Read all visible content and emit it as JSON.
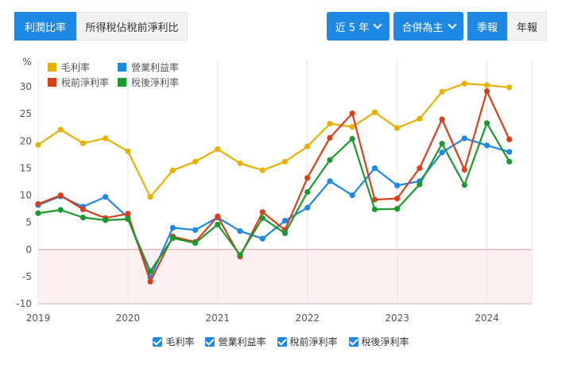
{
  "tabs": {
    "ratio": "利潤比率",
    "tax": "所得稅佔稅前淨利比"
  },
  "controls": {
    "period": "近 5 年",
    "scope": "合併為主",
    "quarterly": "季報",
    "annual": "年報"
  },
  "colors": {
    "gross": "#e8b100",
    "operating": "#1e88e5",
    "pretax": "#d8401c",
    "net": "#1a9a2e",
    "negative_zone": "#fdf0f3",
    "zero_line": "#e39aa9",
    "accent": "#1e88e5"
  },
  "chart_data": {
    "type": "line",
    "ylabel": "%",
    "ylim": [
      -10,
      35
    ],
    "yticks": [
      -10,
      -5,
      0,
      5,
      10,
      15,
      20,
      25,
      30
    ],
    "xlim": [
      2019,
      2024.5
    ],
    "xticks": [
      "2019",
      "2020",
      "2021",
      "2022",
      "2023",
      "2024"
    ],
    "legend_position": "top-left",
    "grid": "vertical",
    "x": [
      "2019Q1",
      "2019Q2",
      "2019Q3",
      "2019Q4",
      "2020Q1",
      "2020Q2",
      "2020Q3",
      "2020Q4",
      "2021Q1",
      "2021Q2",
      "2021Q3",
      "2021Q4",
      "2022Q1",
      "2022Q2",
      "2022Q3",
      "2022Q4",
      "2023Q1",
      "2023Q2",
      "2023Q3",
      "2023Q4",
      "2024Q1",
      "2024Q2"
    ],
    "series": [
      {
        "name": "毛利率",
        "key": "gross",
        "values": [
          19.3,
          22.1,
          19.6,
          20.5,
          18.1,
          9.7,
          14.6,
          16.2,
          18.5,
          15.9,
          14.6,
          16.2,
          19.0,
          23.2,
          22.6,
          25.3,
          22.4,
          24.1,
          29.1,
          30.6,
          30.3,
          29.9
        ]
      },
      {
        "name": "營業利益率",
        "key": "operating",
        "values": [
          8.2,
          9.8,
          7.9,
          9.7,
          5.9,
          -5.2,
          4.0,
          3.6,
          5.9,
          3.4,
          2.0,
          5.3,
          7.7,
          12.6,
          10.0,
          15.0,
          11.8,
          12.6,
          17.9,
          20.5,
          19.2,
          18.0
        ]
      },
      {
        "name": "稅前淨利率",
        "key": "pretax",
        "values": [
          8.4,
          10.0,
          7.4,
          5.8,
          6.6,
          -5.9,
          2.4,
          1.4,
          6.1,
          -1.3,
          6.9,
          3.6,
          13.2,
          20.6,
          25.1,
          9.2,
          9.4,
          15.0,
          24.0,
          14.7,
          29.2,
          20.3
        ]
      },
      {
        "name": "稅後淨利率",
        "key": "net",
        "values": [
          6.7,
          7.3,
          5.9,
          5.4,
          5.6,
          -4.0,
          2.1,
          1.2,
          4.6,
          -1.0,
          5.8,
          3.0,
          10.6,
          16.5,
          20.4,
          7.4,
          7.5,
          12.0,
          19.5,
          11.9,
          23.3,
          16.2
        ]
      }
    ]
  }
}
